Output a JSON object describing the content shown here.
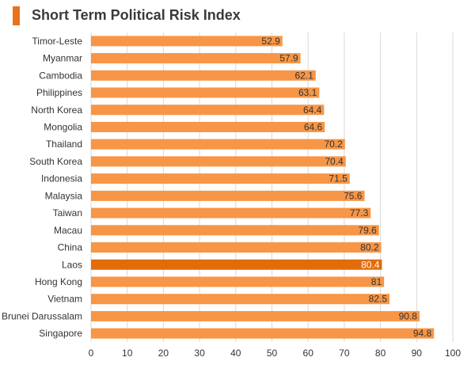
{
  "chart_data": {
    "type": "bar",
    "orientation": "horizontal",
    "title": "Short Term Political Risk Index",
    "xlabel": "",
    "ylabel": "",
    "xlim": [
      0,
      100
    ],
    "ticks": [
      0,
      10,
      20,
      30,
      40,
      50,
      60,
      70,
      80,
      90,
      100
    ],
    "grid": true,
    "categories": [
      "Timor-Leste",
      "Myanmar",
      "Cambodia",
      "Philippines",
      "North Korea",
      "Mongolia",
      "Thailand",
      "South Korea",
      "Indonesia",
      "Malaysia",
      "Taiwan",
      "Macau",
      "China",
      "Laos",
      "Hong Kong",
      "Vietnam",
      "Brunei Darussalam",
      "Singapore"
    ],
    "values": [
      52.9,
      57.9,
      62.1,
      63.1,
      64.4,
      64.6,
      70.2,
      70.4,
      71.5,
      75.6,
      77.3,
      79.6,
      80.2,
      80.4,
      81,
      82.5,
      90.8,
      94.8
    ],
    "highlight": "Laos",
    "colors": {
      "bar": "#f79646",
      "highlight": "#e36c0a",
      "accent": "#e8731c",
      "grid": "#d9d9d9"
    }
  }
}
